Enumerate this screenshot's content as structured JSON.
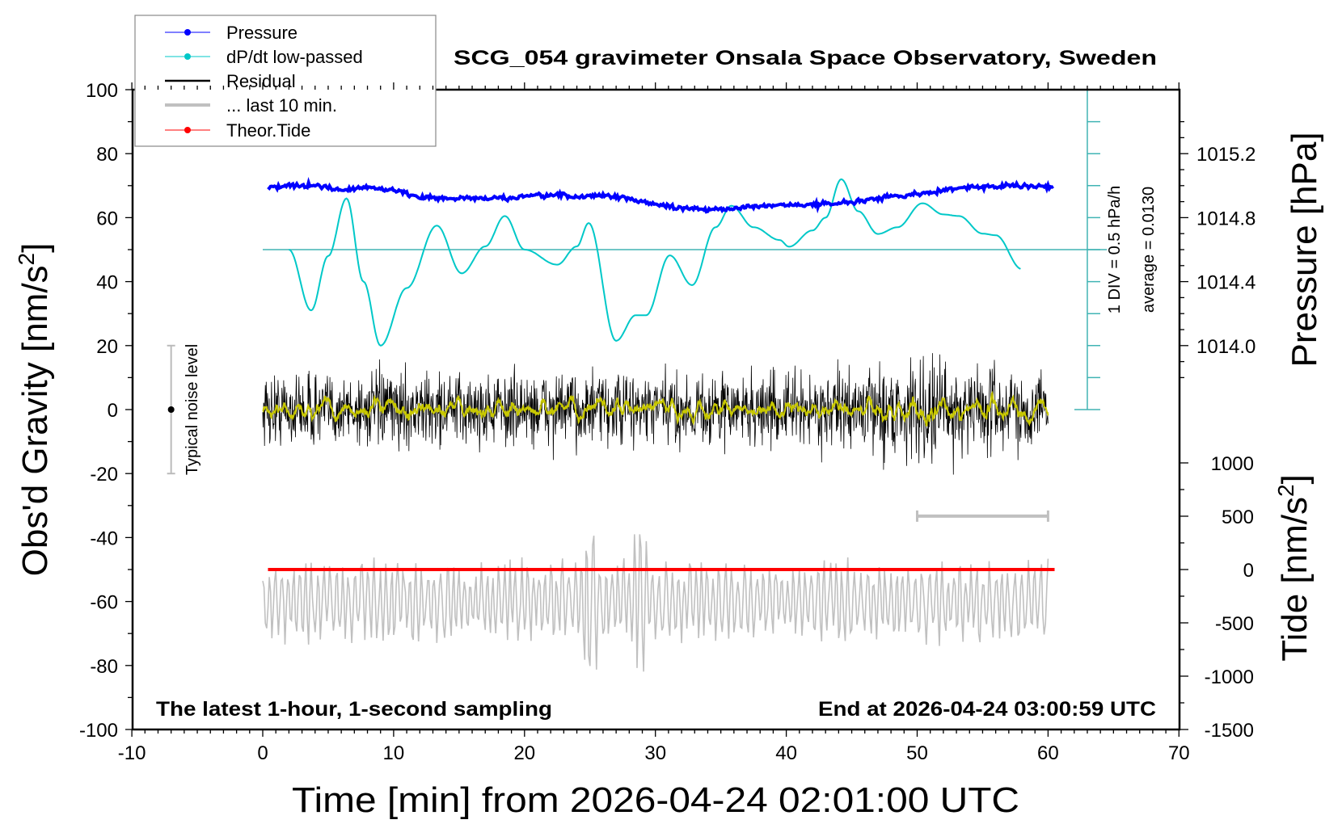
{
  "chart_data": {
    "type": "line",
    "title": "SCG_054 gravimeter Onsala Space Observatory, Sweden",
    "xlabel": "Time [min] from 2026-04-24 02:01:00 UTC",
    "ylabel": "Obs'd Gravity [nm/s",
    "ylabel_sup": "2",
    "ylabel_close": "]",
    "y2label": "Pressure [hPa]",
    "y3label": "Tide [nm/s",
    "y3label_sup": "2",
    "y3label_close": "]",
    "xlim": [
      -10,
      70
    ],
    "ylim": [
      -100,
      100
    ],
    "xticks": [
      "-10",
      "0",
      "10",
      "20",
      "30",
      "40",
      "50",
      "60",
      "70"
    ],
    "yticks": [
      "100",
      "80",
      "60",
      "40",
      "20",
      "0",
      "-20",
      "-40",
      "-60",
      "-80",
      "-100"
    ],
    "pressure_ticks": [
      "1015.2",
      "1014.8",
      "1014.4",
      "1014.0"
    ],
    "tide_ticks": [
      "1000",
      "500",
      "0",
      "-500",
      "-1000",
      "-1500"
    ],
    "bottom_left_note": "The latest 1-hour, 1-second sampling",
    "bottom_right_note": "End at 2026-04-24 03:00:59 UTC",
    "noise_label": "Typical noise level",
    "scale_note": "1 DIV = 0.5 hPa/h",
    "average_note": "average = 0.0130",
    "legend": {
      "placement": "top-left",
      "items": [
        {
          "label": "Pressure",
          "color": "#0000ff",
          "marker": true
        },
        {
          "label": "dP/dt low-passed",
          "color": "#00c8c8",
          "marker": true
        },
        {
          "label": "Residual",
          "color": "#000000",
          "marker": false
        },
        {
          "label": "... last 10 min.",
          "color": "#c0c0c0",
          "marker": false
        },
        {
          "label": "Theor.Tide",
          "color": "#ff0000",
          "marker": true
        }
      ]
    },
    "series": [
      {
        "name": "Pressure",
        "unit": "hPa",
        "color": "#0000ff",
        "x": [
          0.4,
          2,
          4,
          6,
          8,
          10,
          12,
          14,
          16,
          18,
          20,
          22,
          24,
          26,
          28,
          30,
          32,
          34,
          36,
          38,
          40,
          42,
          44,
          46,
          48,
          50,
          52,
          54,
          56,
          58,
          60.5
        ],
        "values": [
          1014.99,
          1015.0,
          1015.0,
          1014.97,
          1014.99,
          1014.97,
          1014.93,
          1014.92,
          1014.92,
          1014.92,
          1014.93,
          1014.94,
          1014.93,
          1014.94,
          1014.92,
          1014.88,
          1014.86,
          1014.85,
          1014.86,
          1014.87,
          1014.88,
          1014.88,
          1014.89,
          1014.91,
          1014.93,
          1014.95,
          1014.97,
          1014.99,
          1015.0,
          1015.0,
          1014.99
        ]
      },
      {
        "name": "dP/dt low-passed",
        "unit": "gravity-axis units (50 = zero)",
        "color": "#00c8c8",
        "x": [
          2,
          3.7,
          5,
          6.4,
          7.7,
          9,
          11,
          13.3,
          15.2,
          17,
          18.5,
          20,
          22.5,
          24,
          24.9,
          27,
          28.5,
          29.3,
          31.1,
          32.8,
          34.6,
          35.8,
          37.5,
          39.5,
          40.2,
          42,
          43,
          44.2,
          45.5,
          47,
          48.5,
          50.4,
          52,
          53.2,
          55,
          56,
          58
        ],
        "values": [
          50,
          31,
          48,
          66,
          40,
          20,
          38,
          57.5,
          42.6,
          51,
          60.5,
          50,
          45.3,
          51,
          58.3,
          21.5,
          29.5,
          29.5,
          48.2,
          38.9,
          57,
          63.7,
          57,
          53,
          50.9,
          56,
          60,
          72,
          62,
          54.9,
          57,
          64.5,
          61,
          60.5,
          55,
          54.5,
          43.9
        ]
      },
      {
        "name": "Residual",
        "color": "#000000",
        "x_range": [
          0,
          60
        ],
        "std": 5.5,
        "range": [
          -24,
          23
        ]
      },
      {
        "name": "Residual smoothed",
        "color": "#c8c800",
        "x_range": [
          0,
          60
        ]
      },
      {
        "name": "... last 10 min.",
        "color": "#c0c0c0",
        "x_range": [
          0,
          60
        ],
        "offset": -60,
        "range": [
          -86,
          -39
        ]
      },
      {
        "name": "Theor.Tide",
        "color": "#ff0000",
        "x_range": [
          0.4,
          60.5
        ],
        "value_nm_s2": 0
      }
    ],
    "dpdt_zero_line": 50,
    "dpdt_scale_bar": {
      "x": 63,
      "from": 0,
      "to": 100,
      "div": 10
    },
    "noise_bar": {
      "x": -7,
      "from": -20,
      "to": 20
    },
    "last10_bar": {
      "from": 50,
      "to": 60,
      "y": -33.3
    },
    "colors": {
      "cyan_axis": "#40b4b4",
      "gray": "#c0c0c0"
    }
  }
}
